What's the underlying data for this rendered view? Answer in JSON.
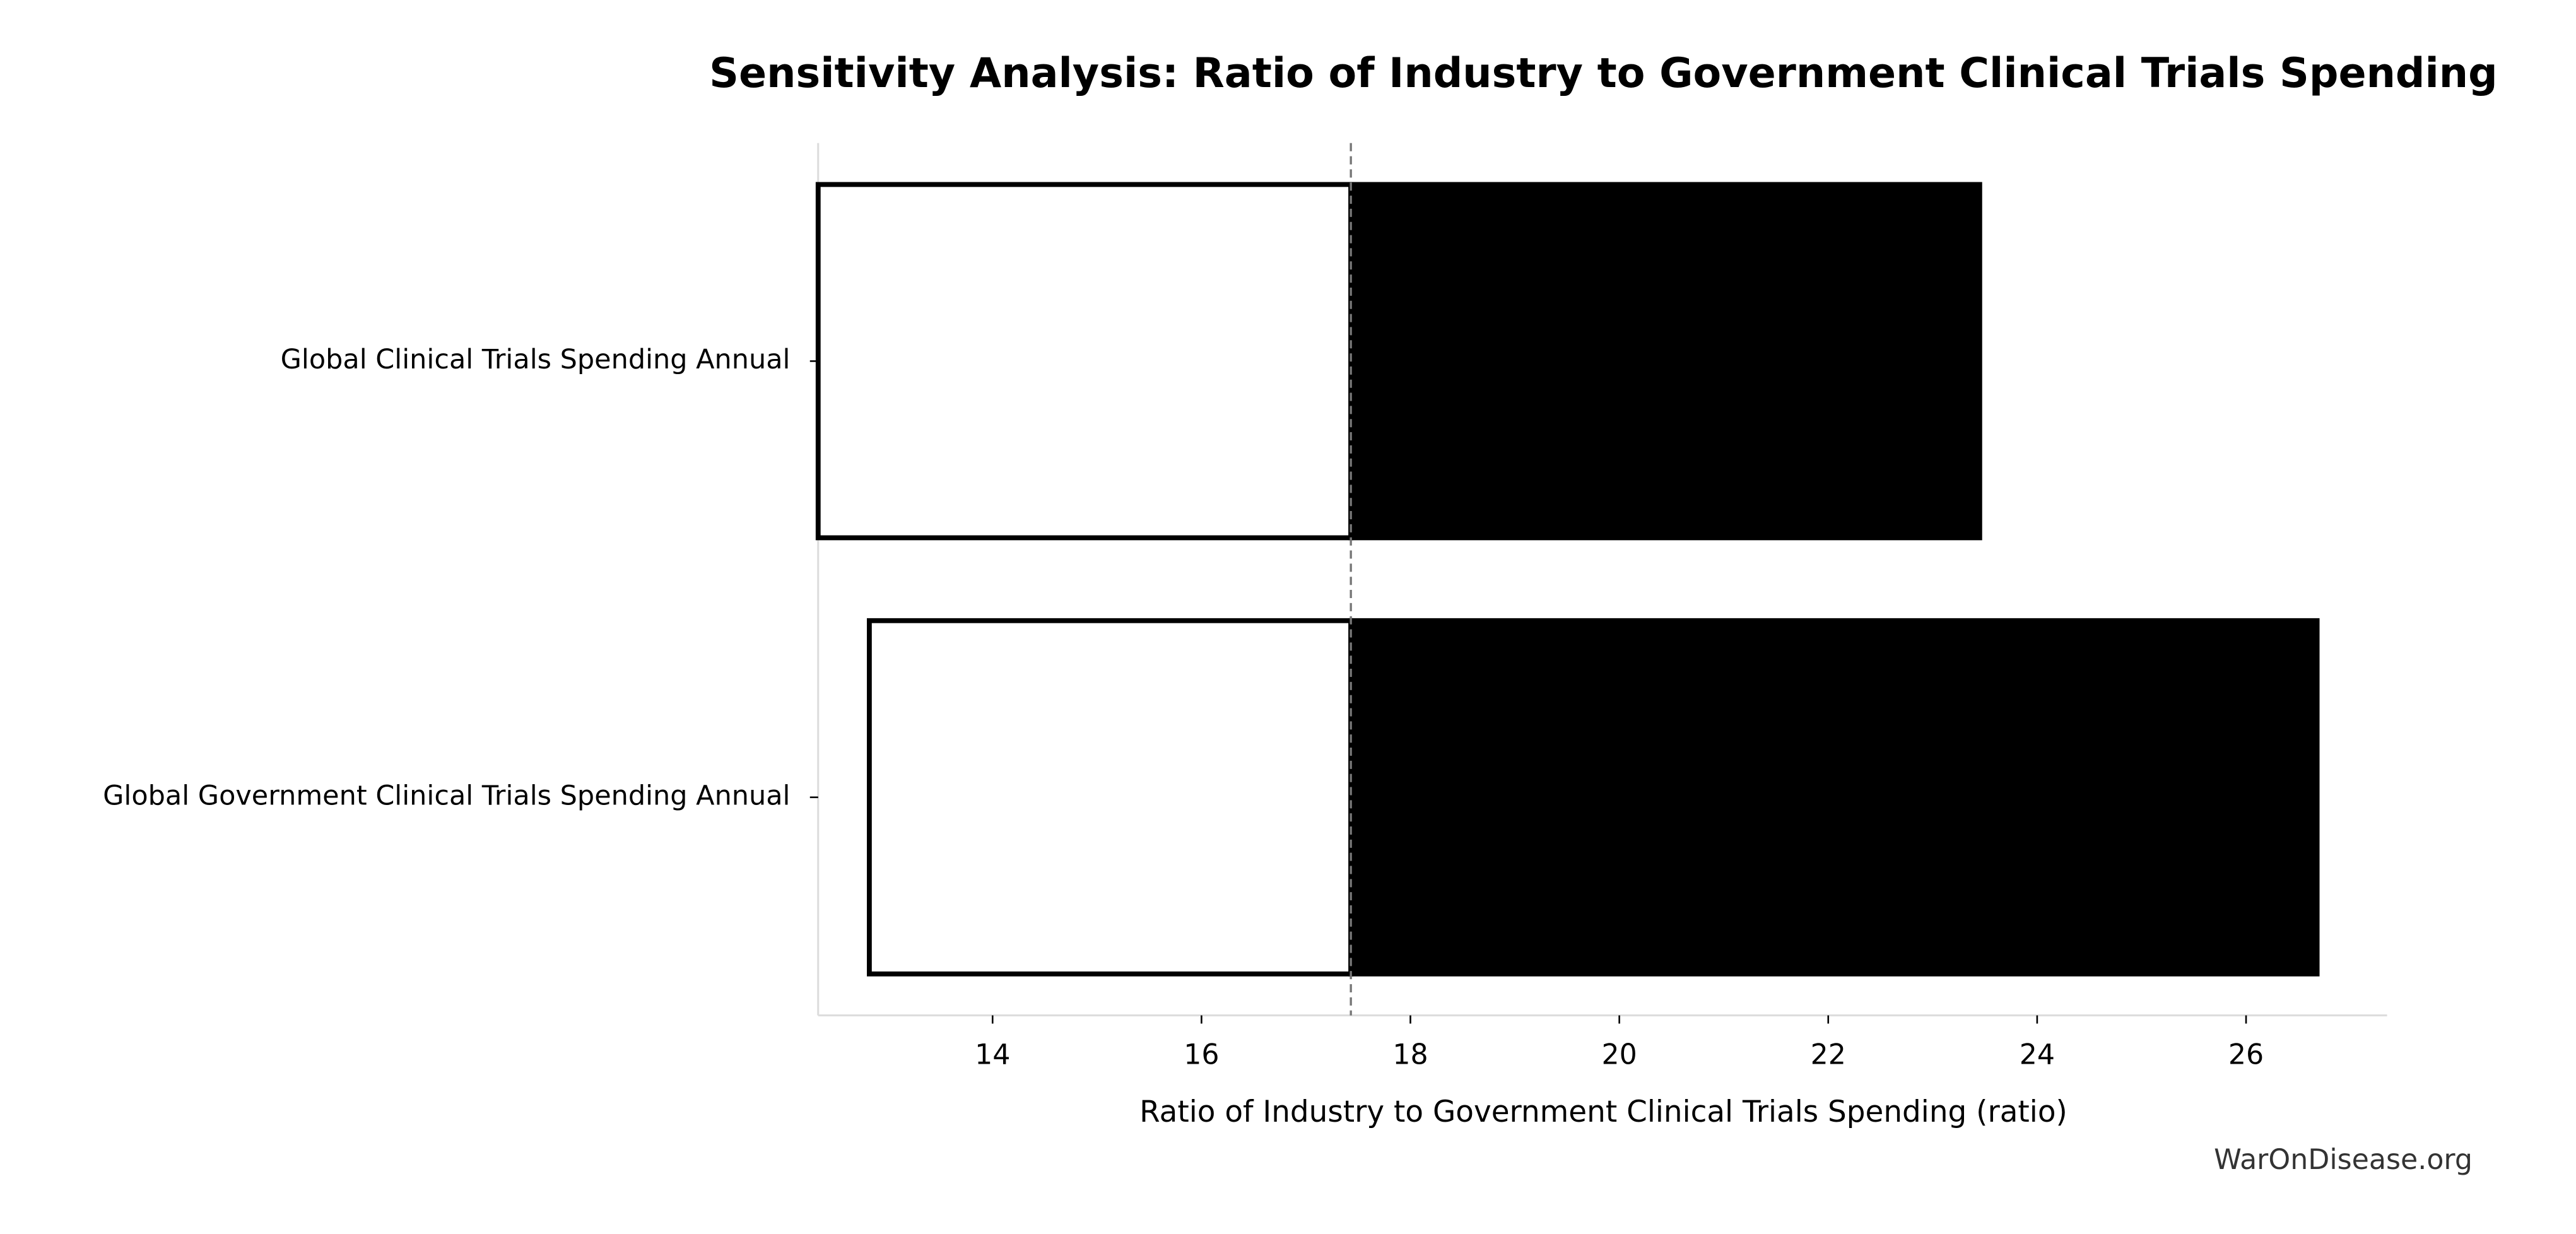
{
  "chart_data": {
    "type": "tornado",
    "title": "Sensitivity Analysis: Ratio of Industry to Government Clinical Trials Spending",
    "x_label": "Ratio of Industry to Government Clinical Trials Spending (ratio)",
    "source": "WarOnDisease.org",
    "categories": [
      "Global Clinical Trials Spending Annual",
      "Global Government Clinical Trials Spending Annual"
    ],
    "baseline": 17.43,
    "series": [
      {
        "color": "#ffffff",
        "values": [
          12.33,
          12.82
        ]
      },
      {
        "color": "#000000",
        "values": [
          23.45,
          26.68
        ]
      }
    ],
    "xlim": [
      12.33,
      27.35
    ],
    "xticks": [
      14,
      16,
      18,
      20,
      22,
      24,
      26
    ]
  }
}
